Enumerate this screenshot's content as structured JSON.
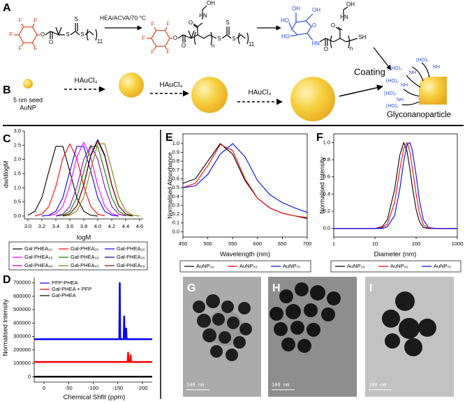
{
  "scheme_a": {
    "label": "A",
    "reagent": "HEA/ACVA/70 °C",
    "atoms1": [
      "F",
      "F",
      "F",
      "F",
      "F",
      "O",
      "O",
      "S",
      "S",
      "S",
      "11"
    ],
    "atoms2": [
      "F",
      "F",
      "F",
      "F",
      "F",
      "O",
      "O",
      "OH",
      "HN",
      "O",
      "S",
      "S",
      "S",
      "n",
      "11"
    ],
    "atoms3": [
      "HO",
      "OH",
      "OH",
      "O",
      "HO",
      "HN",
      "O",
      "OH",
      "HN",
      "O",
      "SH",
      "n"
    ]
  },
  "scheme_b": {
    "label": "B",
    "seed": [
      "5 nm seed",
      "AuNP"
    ],
    "reagents": [
      "HAuCl₄",
      "HAuCl₄",
      "HAuCl₄"
    ],
    "coating": "Coating",
    "product": "Glyconanoparticle",
    "glyco": [
      "(HO)₄",
      "NH",
      "(HO)₄",
      "NH",
      "(HO)₄",
      "NH",
      "(HO)₄",
      "NH",
      "(HO)₄"
    ]
  },
  "tem": {
    "panels": [
      {
        "label": "G",
        "scale_bar": "100 nm"
      },
      {
        "label": "H",
        "scale_bar": "100 nm"
      },
      {
        "label": "I",
        "scale_bar": "100 nm"
      }
    ]
  },
  "chart_data": [
    {
      "type": "line",
      "label": "C",
      "x_label": "logM",
      "y_label": "dw/dlogM",
      "legend": "below",
      "x": [
        3.0,
        3.1,
        3.2,
        3.3,
        3.4,
        3.5,
        3.6,
        3.7,
        3.8,
        3.9,
        4.0,
        4.1,
        4.2,
        4.3,
        4.4,
        4.5,
        4.6
      ],
      "xlim": [
        2.95,
        4.65
      ],
      "ylim": [
        -0.1,
        3.0
      ],
      "xticks": [
        {
          "value": 3.0,
          "label": "3.0"
        },
        3.2,
        3.4,
        3.6,
        3.8,
        {
          "value": 4.0,
          "label": "4.0"
        },
        4.2,
        4.4,
        4.6
      ],
      "yticks": [
        {
          "value": 0,
          "label": "0.0"
        },
        0.5,
        {
          "value": 1,
          "label": "1.0"
        },
        1.5,
        {
          "value": 2,
          "label": "2.0"
        },
        2.5,
        {
          "value": 3,
          "label": "3.0"
        }
      ],
      "series": [
        {
          "name": "Gal PHEA₁₀",
          "color": "#000000",
          "values": [
            0.03,
            0.17,
            0.65,
            1.58,
            2.46,
            2.46,
            1.58,
            0.65,
            0.17,
            0.03,
            0,
            null,
            null,
            null,
            null,
            null,
            null
          ]
        },
        {
          "name": "Gal-PHEA₁₅",
          "color": "#ff0000",
          "values": [
            null,
            0.01,
            0.07,
            0.34,
            1.05,
            2.04,
            2.55,
            2.04,
            1.05,
            0.34,
            0.07,
            0.01,
            null,
            null,
            null,
            null,
            null
          ]
        },
        {
          "name": "Gal-PHEA₂₀",
          "color": "#0000ff",
          "values": [
            null,
            null,
            0,
            0.03,
            0.17,
            0.65,
            1.58,
            2.46,
            2.46,
            1.58,
            0.65,
            0.17,
            0.03,
            0,
            null,
            null,
            null
          ]
        },
        {
          "name": "Gal-PHEA₂₅",
          "color": "#ff00ff",
          "values": [
            null,
            null,
            null,
            0.01,
            0.08,
            0.35,
            1.07,
            2.08,
            2.6,
            2.08,
            1.07,
            0.35,
            0.08,
            0.01,
            null,
            null,
            null
          ]
        },
        {
          "name": "Gal-PHEA₃₀",
          "color": "#008000",
          "values": [
            null,
            null,
            null,
            null,
            0,
            0.03,
            0.17,
            0.65,
            1.58,
            2.46,
            2.46,
            1.58,
            0.65,
            0.17,
            0.03,
            0,
            null
          ]
        },
        {
          "name": "Gal-PHEA₃₅",
          "color": "#000080",
          "values": [
            null,
            null,
            null,
            null,
            null,
            0.01,
            0.08,
            0.36,
            1.11,
            2.16,
            2.7,
            2.16,
            1.11,
            0.36,
            0.08,
            0.01,
            null
          ]
        },
        {
          "name": "Gal-PHEA₄₀",
          "color": "#a000c0",
          "values": [
            null,
            null,
            null,
            null,
            0.01,
            0.07,
            0.34,
            1.03,
            2.0,
            2.5,
            2.0,
            1.03,
            0.34,
            0.07,
            0.01,
            null,
            null
          ]
        },
        {
          "name": "Gal-PHEA₄₅",
          "color": "#808000",
          "values": [
            null,
            null,
            null,
            null,
            null,
            0,
            0.03,
            0.18,
            0.67,
            1.64,
            2.55,
            2.55,
            1.64,
            0.67,
            0.18,
            0.03,
            0
          ]
        },
        {
          "name": "Gal-PHEA₅₀",
          "color": "#800000",
          "values": [
            null,
            null,
            null,
            null,
            null,
            0.01,
            0.08,
            0.36,
            1.09,
            2.12,
            2.65,
            2.12,
            1.09,
            0.36,
            0.08,
            0.01,
            null
          ]
        }
      ]
    },
    {
      "type": "line",
      "label": "D",
      "x_label": "Chemical Shfit (ppm)",
      "y_label": "Normalised Intensity",
      "legend": "upper left",
      "x": [
        20,
        -153,
        -154,
        -155,
        -162,
        -163,
        -164,
        -166,
        -167,
        -168,
        -170,
        -171,
        -172,
        -175,
        -176,
        -177,
        -220
      ],
      "xlim": [
        20,
        -220
      ],
      "ylim": [
        -40000,
        740000
      ],
      "xticks": [
        0,
        -50,
        -100,
        -150,
        -200
      ],
      "yticks": [
        0,
        100000,
        200000,
        300000,
        400000,
        500000,
        600000,
        700000
      ],
      "series": [
        {
          "name": "PFP-PHEA",
          "color": "#0000ff",
          "values": [
            280000,
            280000,
            700000,
            280000,
            280000,
            450000,
            280000,
            280000,
            360000,
            280000,
            280000,
            280000,
            280000,
            280000,
            280000,
            280000,
            280000
          ]
        },
        {
          "name": "Gal-PHEA + PFP",
          "color": "#ff0000",
          "values": [
            110000,
            110000,
            110000,
            110000,
            110000,
            110000,
            110000,
            110000,
            110000,
            110000,
            110000,
            180000,
            110000,
            110000,
            160000,
            110000,
            110000
          ]
        },
        {
          "name": "Gal-PHEA",
          "color": "#000000",
          "values": [
            0,
            0,
            0,
            0,
            0,
            0,
            0,
            0,
            0,
            0,
            0,
            0,
            0,
            0,
            0,
            0,
            0
          ]
        }
      ]
    },
    {
      "type": "line",
      "label": "E",
      "x_label": "Wavelength (nm)",
      "y_label": "Normalised Absorbance",
      "legend": "below",
      "x": [
        450,
        475,
        500,
        525,
        550,
        575,
        600,
        625,
        650,
        675,
        700
      ],
      "xlim": [
        450,
        700
      ],
      "ylim": [
        -0.06,
        1.11
      ],
      "xticks": [
        450,
        500,
        550,
        600,
        650,
        700
      ],
      "yticks": [
        {
          "value": 0,
          "label": "0.0"
        },
        0.1,
        0.2,
        0.3,
        0.4,
        0.5,
        0.6,
        0.7,
        0.8,
        0.9,
        {
          "value": 1,
          "label": "1.0"
        }
      ],
      "series": [
        {
          "name": "AuNP₃₀",
          "color": "#000000",
          "values": [
            0.55,
            0.6,
            0.8,
            1.0,
            0.88,
            0.58,
            0.38,
            0.27,
            0.21,
            0.18,
            0.15
          ]
        },
        {
          "name": "AuNP₅₀",
          "color": "#ff0000",
          "values": [
            0.5,
            0.55,
            0.75,
            0.99,
            0.92,
            0.6,
            0.38,
            0.27,
            0.21,
            0.18,
            0.16
          ]
        },
        {
          "name": "AuNP₇₀",
          "color": "#0000ff",
          "values": [
            0.5,
            0.52,
            0.65,
            0.88,
            1.0,
            0.85,
            0.58,
            0.42,
            0.33,
            0.27,
            0.22
          ]
        }
      ]
    },
    {
      "type": "line",
      "label": "F",
      "x_label": "Diameter (nm)",
      "y_label": "Normalised Intensity",
      "legend": "below",
      "log_x": true,
      "x": [
        1,
        10,
        15,
        20,
        30,
        40,
        50,
        60,
        70,
        80,
        100,
        120,
        150,
        200,
        300,
        1000
      ],
      "xlim": [
        1,
        1000
      ],
      "ylim": [
        -0.1,
        1.1
      ],
      "xticks": [
        1,
        10,
        100,
        1000
      ],
      "yticks": [
        {
          "value": 0,
          "label": "0.0"
        },
        0.2,
        0.4,
        0.6,
        0.8,
        {
          "value": 1,
          "label": "1.0"
        }
      ],
      "series": [
        {
          "name": "AuNP₃₀",
          "color": "#000000",
          "values": [
            0,
            0,
            0.02,
            0.1,
            0.45,
            0.85,
            1.0,
            0.9,
            0.7,
            0.5,
            0.22,
            0.08,
            0.01,
            0,
            0,
            0
          ]
        },
        {
          "name": "AuNP₅₀",
          "color": "#ff0000",
          "values": [
            0,
            0,
            0.01,
            0.05,
            0.3,
            0.68,
            0.93,
            1.0,
            0.9,
            0.72,
            0.4,
            0.18,
            0.04,
            0,
            0,
            0
          ]
        },
        {
          "name": "AuNP₇₀",
          "color": "#0000ff",
          "values": [
            0,
            0,
            0,
            0.02,
            0.15,
            0.45,
            0.78,
            0.97,
            1.0,
            0.92,
            0.62,
            0.33,
            0.1,
            0.01,
            0,
            0
          ]
        }
      ]
    }
  ]
}
